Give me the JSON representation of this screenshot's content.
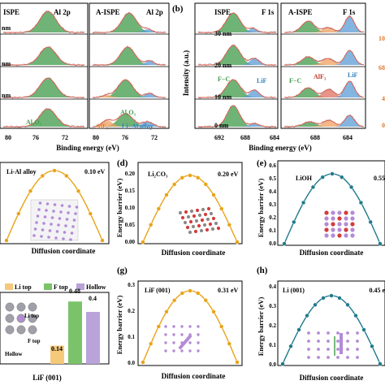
{
  "colors": {
    "green": "#3f9a4a",
    "orange_fill": "#f0a060",
    "blue_fill": "#5b9bd5",
    "fit_red": "#e0584a",
    "gold_curve": "#e8a317",
    "teal_curve": "#1f7a8c",
    "lithium": "#b48ad6",
    "bar_li": "#f5c97a",
    "bar_f": "#7ac36a",
    "bar_hollow": "#b9a3d9"
  },
  "panel_a": {
    "headers": [
      "ISPE",
      "Al 2p",
      "A-ISPE",
      "Al 2p"
    ],
    "depth_labels": [
      "nm",
      "nm",
      "nm"
    ],
    "peak_labels": [
      "Al₂O₃",
      "Al₂O₃",
      "AlF₃",
      "Li−Al alloy"
    ],
    "ticks_left": [
      "80",
      "76",
      "72"
    ],
    "ticks_right": [
      "80",
      "76",
      "72"
    ],
    "xlabel": "Binding energy (eV)"
  },
  "panel_b": {
    "letter": "(b)",
    "headers": [
      "ISPE",
      "F 1s",
      "A-ISPE",
      "F 1s"
    ],
    "depth_labels": [
      "30 nm",
      "20 nm",
      "10 nm",
      "0 nm"
    ],
    "right_labels": [
      "10",
      "68",
      "4",
      "0"
    ],
    "peak_labels": [
      "F−C",
      "LiF",
      "F−C",
      "AlF₃",
      "LiF"
    ],
    "ticks_left": [
      "692",
      "688",
      "684"
    ],
    "ticks_right": [
      "688",
      "684"
    ],
    "ylabel": "Intensity (a.u.)",
    "xlabel": "Binding energy (eV)"
  },
  "row2": {
    "ylabel": "Energy barrier (eV)",
    "xlabel": "Diffusion coordinate",
    "panels": [
      {
        "letter": "",
        "name": "Li-Al alloy",
        "barrier": "0.10 eV",
        "yticks": []
      },
      {
        "letter": "(d)",
        "name": "Li₂CO₃",
        "barrier": "0.20 eV",
        "yticks": [
          "0.20",
          "0.15",
          "0.10",
          "0.05",
          "0.00"
        ]
      },
      {
        "letter": "(e)",
        "name": "LiOH",
        "barrier": "0.55",
        "yticks": [
          "0.6",
          "0.5",
          "0.4",
          "0.3",
          "0.2",
          "0.1",
          "0.0"
        ]
      }
    ]
  },
  "row3": {
    "bars_legend": [
      "Li top",
      "F top",
      "Hollow"
    ],
    "bar_values": [
      "0.14",
      "0.48",
      "0.4"
    ],
    "lattice_labels": [
      "Li top",
      "F top",
      "Hollow"
    ],
    "lattice_title": "LiF (001)",
    "panels": [
      {
        "letter": "(g)",
        "name": "LiF (001)",
        "barrier": "0.31 eV",
        "yticks": [
          "0.3",
          "0.2",
          "0.1",
          "0.0"
        ]
      },
      {
        "letter": "(h)",
        "name": "Li (001)",
        "barrier": "0.45 e",
        "yticks": [
          "0.4",
          "0.3",
          "0.2",
          "0.1",
          "0.0"
        ]
      }
    ]
  },
  "chart_data": [
    {
      "type": "bar",
      "categories": [
        "Li top",
        "F top",
        "Hollow"
      ],
      "values": [
        0.14,
        0.48,
        0.4
      ]
    },
    {
      "type": "line",
      "name": "Li-Al alloy",
      "barrier_eV": 0.1
    },
    {
      "type": "line",
      "name": "Li₂CO₃",
      "barrier_eV": 0.2,
      "ylim": [
        0,
        0.22
      ]
    },
    {
      "type": "line",
      "name": "LiOH",
      "barrier_eV": 0.55,
      "ylim": [
        0,
        0.6
      ]
    },
    {
      "type": "line",
      "name": "LiF (001)",
      "barrier_eV": 0.31,
      "ylim": [
        0,
        0.35
      ]
    },
    {
      "type": "line",
      "name": "Li (001)",
      "barrier_eV": 0.45,
      "ylim": [
        0,
        0.5
      ]
    }
  ]
}
